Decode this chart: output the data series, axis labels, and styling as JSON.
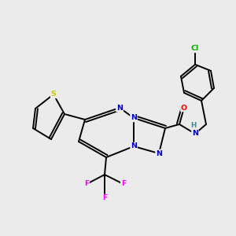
{
  "bg_color": "#ebebeb",
  "bond_color": "#000000",
  "atom_colors": {
    "N": "#0000cc",
    "O": "#ff0000",
    "F": "#ff00ff",
    "S": "#cccc00",
    "Cl": "#00aa00",
    "H": "#448888",
    "C": "#000000"
  },
  "lw": 1.4,
  "fs": 6.8
}
